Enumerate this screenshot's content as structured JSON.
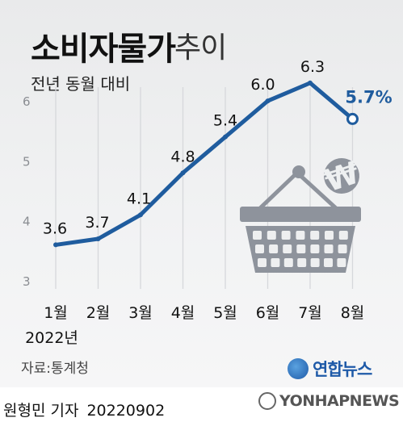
{
  "header": {
    "title_main": "소비자물가",
    "title_sub": "추이",
    "subtitle": "전년 동월 대비"
  },
  "source": "자료:통계청",
  "credit": {
    "reporter": "원형민 기자",
    "date": "20220902"
  },
  "logos": {
    "korean": "연합뉴스",
    "english": "YONHAPNEWS"
  },
  "colors": {
    "line": "#1f5c9e",
    "basket": "#8e939c",
    "gridline": "#d6d8db",
    "background": "#eeeff0"
  },
  "chart_data": {
    "type": "line",
    "categories": [
      "1월",
      "2월",
      "3월",
      "4월",
      "5월",
      "6월",
      "7월",
      "8월"
    ],
    "x_caption": "2022년",
    "values": [
      3.6,
      3.7,
      4.1,
      4.8,
      5.4,
      6.0,
      6.3,
      5.7
    ],
    "value_labels": [
      "3.6",
      "3.7",
      "4.1",
      "4.8",
      "5.4",
      "6.0",
      "6.3",
      "5.7%"
    ],
    "yticks": [
      "3",
      "4",
      "5",
      "6"
    ],
    "ylim": [
      3,
      6.3
    ],
    "grid": true,
    "last_point_highlight": true
  },
  "illustration": {
    "icon": "shopping-basket-icon",
    "symbol": "₩"
  }
}
